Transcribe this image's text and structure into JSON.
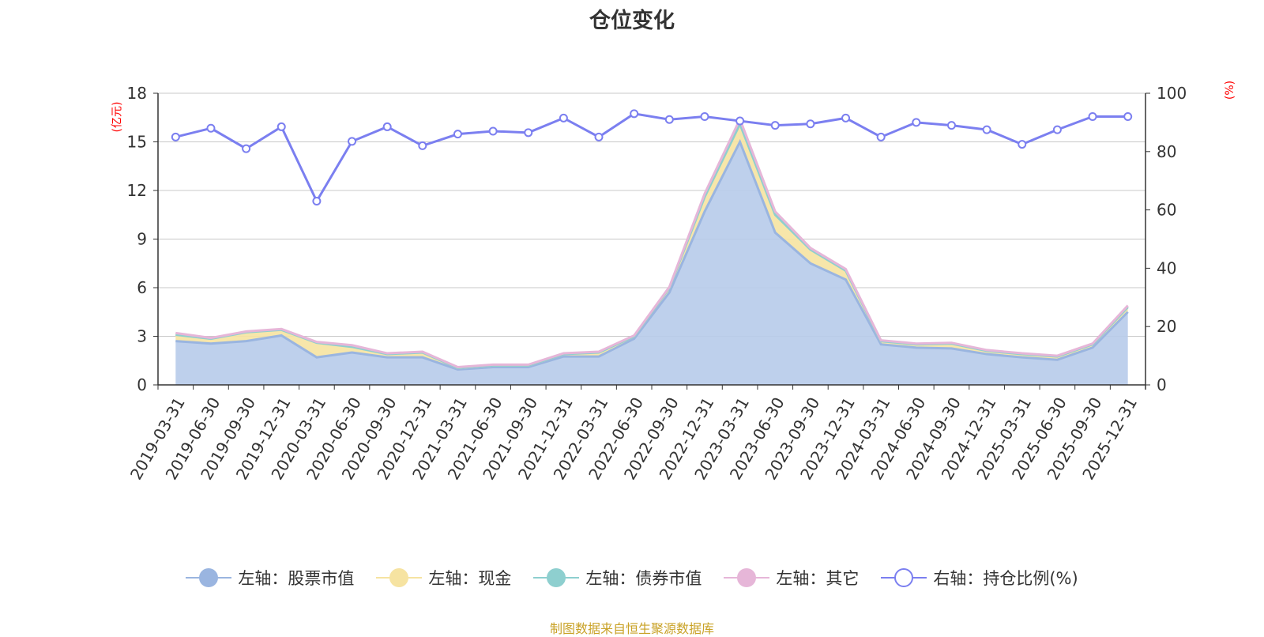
{
  "page": {
    "title": "仓位变化",
    "unit_left": "(亿元)",
    "unit_right": "(%)",
    "source": "制图数据来自恒生聚源数据库"
  },
  "colors": {
    "stock": "#9ab5e0",
    "stock_fill": "#b7cbea",
    "cash": "#f6e3a1",
    "bond": "#8ecfcf",
    "other": "#e6b6d8",
    "ratio": "#7b7ff0",
    "grid": "#c8c8c8",
    "axis": "#333333",
    "source_text": "#c9a227"
  },
  "chart_data": {
    "type": "area",
    "title": "仓位变化",
    "x": [
      "2019-03-31",
      "2019-06-30",
      "2019-09-30",
      "2019-12-31",
      "2020-03-31",
      "2020-06-30",
      "2020-09-30",
      "2020-12-31",
      "2021-03-31",
      "2021-06-30",
      "2021-09-30",
      "2021-12-31",
      "2022-03-31",
      "2022-06-30",
      "2022-09-30",
      "2022-12-31",
      "2023-03-31",
      "2023-06-30",
      "2023-09-30",
      "2023-12-31",
      "2024-03-31",
      "2024-06-30",
      "2024-09-30",
      "2024-12-31",
      "2025-03-31",
      "2025-06-30",
      "2025-09-30",
      "2025-12-31"
    ],
    "left_axis": {
      "label": "(亿元)",
      "ylim": [
        0,
        18
      ],
      "ticks": [
        0,
        3,
        6,
        9,
        12,
        15,
        18
      ]
    },
    "right_axis": {
      "label": "(%)",
      "ylim": [
        0,
        100
      ],
      "ticks": [
        0,
        20,
        40,
        60,
        80,
        100
      ]
    },
    "series": [
      {
        "name": "左轴：股票市值",
        "axis": "left",
        "type": "stacked-area",
        "values": [
          2.7,
          2.55,
          2.7,
          3.05,
          1.7,
          2.0,
          1.7,
          1.7,
          0.95,
          1.1,
          1.1,
          1.75,
          1.75,
          2.85,
          5.7,
          10.7,
          15.0,
          9.4,
          7.5,
          6.5,
          2.5,
          2.3,
          2.25,
          1.9,
          1.7,
          1.55,
          2.3,
          4.5
        ]
      },
      {
        "name": "左轴：现金",
        "axis": "left",
        "type": "stacked-area",
        "values": [
          0.4,
          0.3,
          0.55,
          0.35,
          0.9,
          0.35,
          0.2,
          0.3,
          0.1,
          0.1,
          0.1,
          0.15,
          0.25,
          0.15,
          0.3,
          0.9,
          1.1,
          1.1,
          0.85,
          0.55,
          0.2,
          0.2,
          0.3,
          0.2,
          0.2,
          0.2,
          0.2,
          0.3
        ]
      },
      {
        "name": "左轴：债券市值",
        "axis": "left",
        "type": "stacked-area",
        "values": [
          0,
          0,
          0,
          0,
          0,
          0,
          0,
          0,
          0,
          0,
          0,
          0,
          0,
          0,
          0,
          0,
          0,
          0,
          0,
          0,
          0,
          0,
          0,
          0,
          0,
          0,
          0,
          0
        ]
      },
      {
        "name": "左轴：其它",
        "axis": "left",
        "type": "stacked-area",
        "values": [
          0.1,
          0.05,
          0.05,
          0.05,
          0.05,
          0.1,
          0.05,
          0.05,
          0.05,
          0.05,
          0.05,
          0.05,
          0.05,
          0.05,
          0.05,
          0.2,
          0.3,
          0.2,
          0.1,
          0.1,
          0.05,
          0.05,
          0.05,
          0.05,
          0.05,
          0.05,
          0.05,
          0.1
        ]
      },
      {
        "name": "右轴：持仓比例(%)",
        "axis": "right",
        "type": "line",
        "values": [
          85.0,
          88.0,
          81.0,
          88.5,
          63.0,
          83.5,
          88.5,
          82.0,
          86.0,
          87.0,
          86.5,
          91.5,
          85.0,
          93.0,
          91.0,
          92.0,
          90.5,
          89.0,
          89.5,
          91.5,
          85.0,
          90.0,
          89.0,
          87.5,
          82.5,
          87.5,
          92.0,
          92.0
        ]
      }
    ],
    "grid": true,
    "legend_placement": "bottom"
  }
}
